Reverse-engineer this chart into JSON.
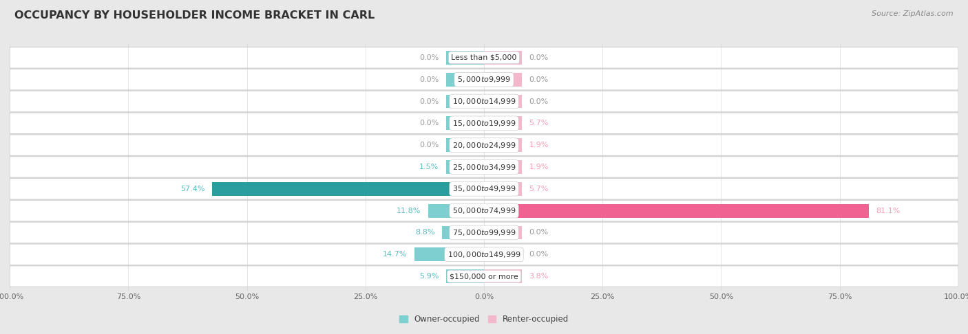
{
  "title": "OCCUPANCY BY HOUSEHOLDER INCOME BRACKET IN CARL",
  "source": "Source: ZipAtlas.com",
  "categories": [
    "Less than $5,000",
    "$5,000 to $9,999",
    "$10,000 to $14,999",
    "$15,000 to $19,999",
    "$20,000 to $24,999",
    "$25,000 to $34,999",
    "$35,000 to $49,999",
    "$50,000 to $74,999",
    "$75,000 to $99,999",
    "$100,000 to $149,999",
    "$150,000 or more"
  ],
  "owner_values": [
    0.0,
    0.0,
    0.0,
    0.0,
    0.0,
    1.5,
    57.4,
    11.8,
    8.8,
    14.7,
    5.9
  ],
  "renter_values": [
    0.0,
    0.0,
    0.0,
    5.7,
    1.9,
    1.9,
    5.7,
    81.1,
    0.0,
    0.0,
    3.8
  ],
  "owner_color_light": "#7ecfcf",
  "owner_color_dark": "#2a9d9f",
  "renter_color_light": "#f4b8cc",
  "renter_color_bright": "#f06292",
  "bg_color": "#e8e8e8",
  "row_bg_even": "#f5f5f5",
  "row_bg_odd": "#ebebeb",
  "row_border": "#d0d0d0",
  "label_text_color": "#333333",
  "owner_label_color": "#5bbcbf",
  "renter_label_color": "#f4a0b5",
  "zero_label_color": "#999999",
  "axis_max": 100.0,
  "stub_min": 8.0,
  "title_fontsize": 11.5,
  "source_fontsize": 8,
  "bar_label_fontsize": 8,
  "category_fontsize": 8,
  "legend_fontsize": 8.5,
  "axis_tick_fontsize": 8
}
